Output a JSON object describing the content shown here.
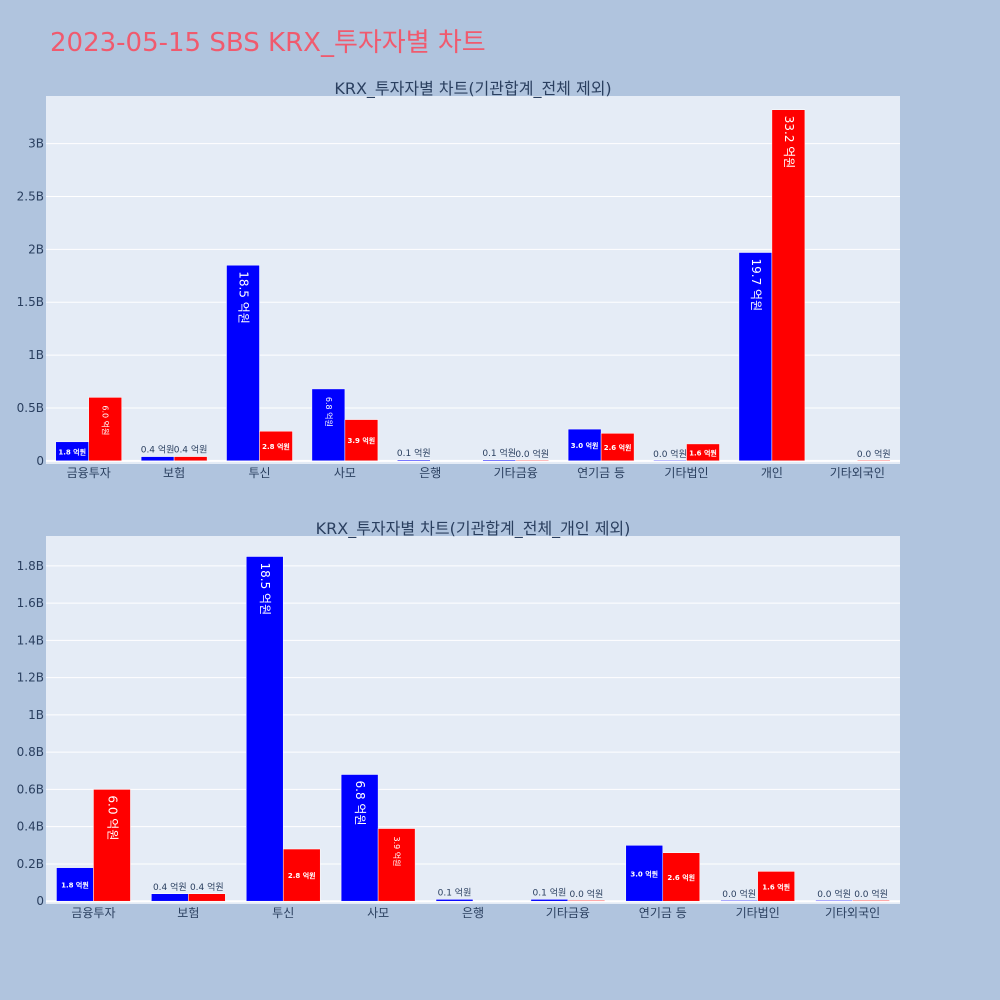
{
  "page": {
    "title": "2023-05-15 SBS KRX_투자자별 차트"
  },
  "colors": {
    "background": "#b0c4de",
    "plot_bg": "#e5ecf6",
    "grid": "#ffffff",
    "buy": "#0000ff",
    "sell": "#ff0000",
    "title": "#f05a6e",
    "text": "#2a3f5f"
  },
  "chart_data": [
    {
      "type": "bar",
      "title": "KRX_투자자별 차트(기관합계_전체 제외)",
      "categories": [
        "금융투자",
        "보험",
        "투신",
        "사모",
        "은행",
        "기타금융",
        "연기금 등",
        "기타법인",
        "개인",
        "기타외국인"
      ],
      "series": [
        {
          "color": "#0000ff",
          "values": [
            180000000,
            40000000,
            1850000000,
            680000000,
            10000000,
            10000000,
            300000000,
            0,
            1970000000,
            null
          ],
          "labels": [
            "1.8 억원",
            "0.4 억원",
            "18.5 억원",
            "6.8 억원",
            "0.1 억원",
            "0.1 억원",
            "3.0 억원",
            "0.0 억원",
            "19.7 억원",
            ""
          ]
        },
        {
          "color": "#ff0000",
          "values": [
            600000000,
            40000000,
            280000000,
            390000000,
            null,
            0,
            260000000,
            160000000,
            3320000000,
            0
          ],
          "labels": [
            "6.0 억원",
            "0.4 억원",
            "2.8 억원",
            "3.9 억원",
            "",
            "0.0 억원",
            "2.6 억원",
            "1.6 억원",
            "33.2 억원",
            "0.0 억원"
          ]
        }
      ],
      "ylim": [
        -30000000,
        3450000000
      ],
      "yticks": [
        0,
        500000000,
        1000000000,
        1500000000,
        2000000000,
        2500000000,
        3000000000
      ],
      "ytick_labels": [
        "0",
        "0.5B",
        "1B",
        "1.5B",
        "2B",
        "2.5B",
        "3B"
      ],
      "grid": true
    },
    {
      "type": "bar",
      "title": "KRX_투자자별 차트(기관합계_전체_개인 제외)",
      "categories": [
        "금융투자",
        "보험",
        "투신",
        "사모",
        "은행",
        "기타금융",
        "연기금 등",
        "기타법인",
        "기타외국인"
      ],
      "series": [
        {
          "color": "#0000ff",
          "values": [
            180000000,
            40000000,
            1850000000,
            680000000,
            10000000,
            10000000,
            300000000,
            0,
            0
          ],
          "labels": [
            "1.8 억원",
            "0.4 억원",
            "18.5 억원",
            "6.8 억원",
            "0.1 억원",
            "0.1 억원",
            "3.0 억원",
            "0.0 억원",
            "0.0 억원"
          ]
        },
        {
          "color": "#ff0000",
          "values": [
            600000000,
            40000000,
            280000000,
            390000000,
            null,
            0,
            260000000,
            160000000,
            0
          ],
          "labels": [
            "6.0 억원",
            "0.4 억원",
            "2.8 억원",
            "3.9 억원",
            "",
            "0.0 억원",
            "2.6 억원",
            "1.6 억원",
            "0.0 억원"
          ]
        }
      ],
      "ylim": [
        -15000000,
        1960000000
      ],
      "yticks": [
        0,
        200000000,
        400000000,
        600000000,
        800000000,
        1000000000,
        1200000000,
        1400000000,
        1600000000,
        1800000000
      ],
      "ytick_labels": [
        "0",
        "0.2B",
        "0.4B",
        "0.6B",
        "0.8B",
        "1B",
        "1.2B",
        "1.4B",
        "1.6B",
        "1.8B"
      ],
      "grid": true
    }
  ]
}
